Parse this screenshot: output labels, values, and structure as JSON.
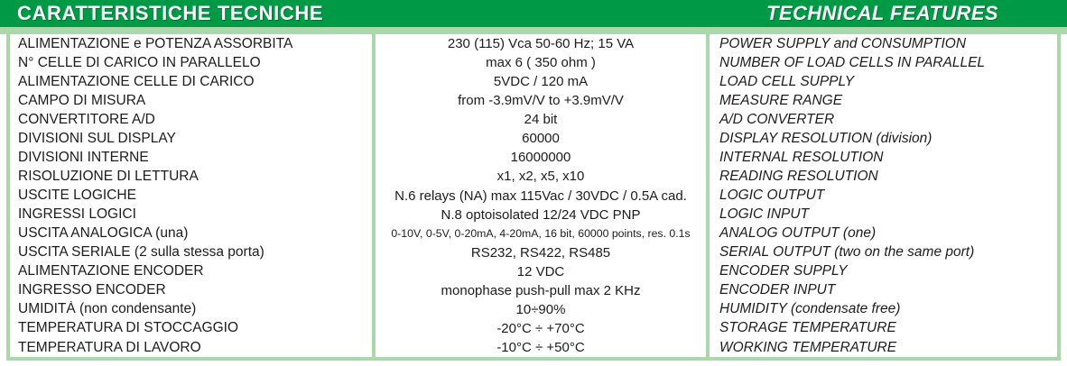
{
  "header": {
    "title_it": "CARATTERISTICHE TECNICHE",
    "title_en": "TECHNICAL FEATURES"
  },
  "colors": {
    "header_green": "#009A46",
    "border_green": "#ABD8AB"
  },
  "table": {
    "rows": [
      {
        "it": "ALIMENTAZIONE e POTENZA ASSORBITA",
        "value": "230 (115) Vca  50-60 Hz; 15 VA",
        "en": "POWER SUPPLY and CONSUMPTION"
      },
      {
        "it": "N° CELLE DI CARICO IN PARALLELO",
        "value": "max 6 ( 350 ohm )",
        "en": "NUMBER OF LOAD CELLS IN PARALLEL"
      },
      {
        "it": "ALIMENTAZIONE CELLE DI CARICO",
        "value": "5VDC / 120 mA",
        "en": "LOAD CELL SUPPLY"
      },
      {
        "it": "CAMPO DI MISURA",
        "value": "from -3.9mV/V  to +3.9mV/V",
        "en": "MEASURE RANGE"
      },
      {
        "it": "CONVERTITORE A/D",
        "value": "24 bit",
        "en": "A/D CONVERTER"
      },
      {
        "it": "DIVISIONI SUL DISPLAY",
        "value": "60000",
        "en": "DISPLAY RESOLUTION (division)"
      },
      {
        "it": "DIVISIONI INTERNE",
        "value": "16000000",
        "en": "INTERNAL RESOLUTION"
      },
      {
        "it": "RISOLUZIONE DI LETTURA",
        "value": "x1, x2, x5, x10",
        "en": "READING RESOLUTION"
      },
      {
        "it": "USCITE LOGICHE",
        "value": "N.6 relays (NA) max 115Vac / 30VDC / 0.5A cad.",
        "en": "LOGIC OUTPUT"
      },
      {
        "it": "INGRESSI LOGICI",
        "value": "N.8 optoisolated 12/24 VDC PNP",
        "en": "LOGIC INPUT"
      },
      {
        "it": "USCITA ANALOGICA (una)",
        "value": "0-10V, 0-5V, 0-20mA, 4-20mA, 16 bit, 60000 points, res. 0.1s",
        "en": "ANALOG OUTPUT (one)",
        "value_size": "small"
      },
      {
        "it": "USCITA SERIALE (2 sulla stessa porta)",
        "value": "RS232, RS422, RS485",
        "en": "SERIAL OUTPUT (two on the same port)"
      },
      {
        "it": "ALIMENTAZIONE ENCODER",
        "value": "12 VDC",
        "en": "ENCODER SUPPLY"
      },
      {
        "it": "INGRESSO ENCODER",
        "value": "monophase push-pull max 2 KHz",
        "en": "ENCODER INPUT"
      },
      {
        "it": "UMIDITÀ (non condensante)",
        "value": "10÷90%",
        "en": "HUMIDITY (condensate free)"
      },
      {
        "it": "TEMPERATURA DI STOCCAGGIO",
        "value": "-20°C ÷ +70°C",
        "en": "STORAGE TEMPERATURE"
      },
      {
        "it": "TEMPERATURA DI LAVORO",
        "value": "-10°C ÷ +50°C",
        "en": "WORKING TEMPERATURE"
      }
    ]
  }
}
